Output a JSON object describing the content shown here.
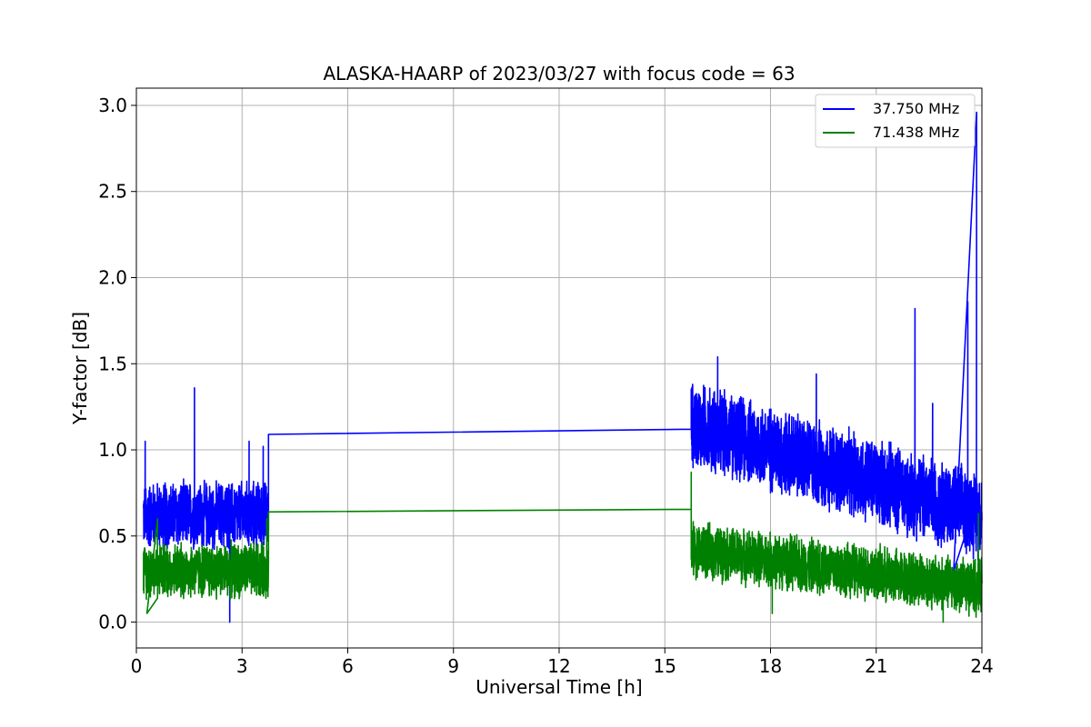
{
  "chart_data": {
    "type": "line",
    "title": "ALASKA-HAARP of 2023/03/27 with focus code = 63",
    "xlabel": "Universal Time [h]",
    "ylabel": "Y-factor [dB]",
    "xlim": [
      0,
      24
    ],
    "ylim": [
      -0.15,
      3.1
    ],
    "xticks": [
      0,
      3,
      6,
      9,
      12,
      15,
      18,
      21,
      24
    ],
    "xtick_labels": [
      "0",
      "3",
      "6",
      "9",
      "12",
      "15",
      "18",
      "21",
      "24"
    ],
    "yticks": [
      0.0,
      0.5,
      1.0,
      1.5,
      2.0,
      2.5,
      3.0
    ],
    "ytick_labels": [
      "0.0",
      "0.5",
      "1.0",
      "1.5",
      "2.0",
      "2.5",
      "3.0"
    ],
    "grid": true,
    "legend_position": "top-right",
    "series": [
      {
        "name": "37.750 MHz",
        "color": "#0000ff",
        "segments": [
          {
            "x_start": 0.2,
            "x_end": 3.75,
            "base": 0.62,
            "amplitude": 0.22,
            "spikes": [
              {
                "x": 0.25,
                "y": 1.05
              },
              {
                "x": 0.3,
                "y": 0.48
              },
              {
                "x": 1.65,
                "y": 1.36
              },
              {
                "x": 2.65,
                "y": 0.0
              },
              {
                "x": 3.2,
                "y": 1.05
              },
              {
                "x": 3.6,
                "y": 1.02
              }
            ]
          },
          {
            "x_start": 3.75,
            "x_end": 15.75,
            "y_start": 1.09,
            "y_end": 1.12
          },
          {
            "x_start": 15.75,
            "x_end": 24.0,
            "base_start": 1.15,
            "base_end": 0.62,
            "amplitude": 0.28,
            "spikes": [
              {
                "x": 16.5,
                "y": 1.54
              },
              {
                "x": 19.3,
                "y": 1.44
              },
              {
                "x": 22.1,
                "y": 1.82
              },
              {
                "x": 22.6,
                "y": 1.27
              },
              {
                "x": 23.6,
                "y": 1.86
              },
              {
                "x": 23.85,
                "y": 2.96
              },
              {
                "x": 23.2,
                "y": 0.3
              }
            ]
          }
        ]
      },
      {
        "name": "71.438 MHz",
        "color": "#008000",
        "segments": [
          {
            "x_start": 0.2,
            "x_end": 3.75,
            "base": 0.3,
            "amplitude": 0.18,
            "spikes": [
              {
                "x": 0.6,
                "y": 0.6
              },
              {
                "x": 0.3,
                "y": 0.05
              },
              {
                "x": 3.7,
                "y": 0.6
              }
            ]
          },
          {
            "x_start": 3.75,
            "x_end": 15.75,
            "y_start": 0.64,
            "y_end": 0.655
          },
          {
            "x_start": 15.75,
            "x_end": 24.0,
            "base_start": 0.42,
            "base_end": 0.2,
            "amplitude": 0.18,
            "spikes": [
              {
                "x": 15.75,
                "y": 0.87
              },
              {
                "x": 18.05,
                "y": 0.05
              },
              {
                "x": 22.9,
                "y": 0.0
              },
              {
                "x": 23.9,
                "y": 0.63
              }
            ]
          }
        ]
      }
    ]
  }
}
